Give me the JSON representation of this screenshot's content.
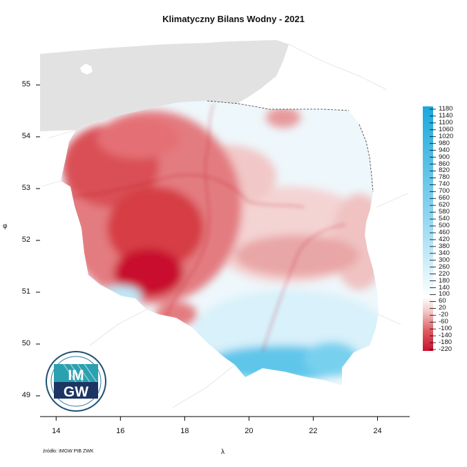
{
  "title": "Klimatyczny Bilans Wodny - 2021",
  "axis": {
    "x_title": "λ",
    "y_title": "φ",
    "x_ticks": [
      14,
      16,
      18,
      20,
      22,
      24
    ],
    "y_ticks": [
      55,
      54,
      53,
      52,
      51,
      50,
      49
    ],
    "x_range": [
      13.5,
      25.0
    ],
    "y_range": [
      48.6,
      55.6
    ]
  },
  "legend": {
    "placement": "right",
    "labels": [
      "1180",
      "1140",
      "1100",
      "1060",
      "1020",
      "980",
      "940",
      "900",
      "860",
      "820",
      "780",
      "740",
      "700",
      "660",
      "620",
      "580",
      "540",
      "500",
      "460",
      "420",
      "380",
      "340",
      "300",
      "260",
      "220",
      "180",
      "140",
      "100",
      "60",
      "20",
      "-20",
      "-60",
      "-100",
      "-140",
      "-180",
      "-220"
    ],
    "colors": {
      "max": "#1aa8dc",
      "zero": "#ffffff",
      "min": "#c8102e"
    }
  },
  "logo": {
    "text_top": "IM",
    "text_bottom": "GW"
  },
  "source_note": "źródło: IMGW PIB ZWK",
  "colors": {
    "neighbor_land": "#e2e2e2",
    "deficit": "#cf2a33",
    "surplus": "#48bfe6"
  }
}
